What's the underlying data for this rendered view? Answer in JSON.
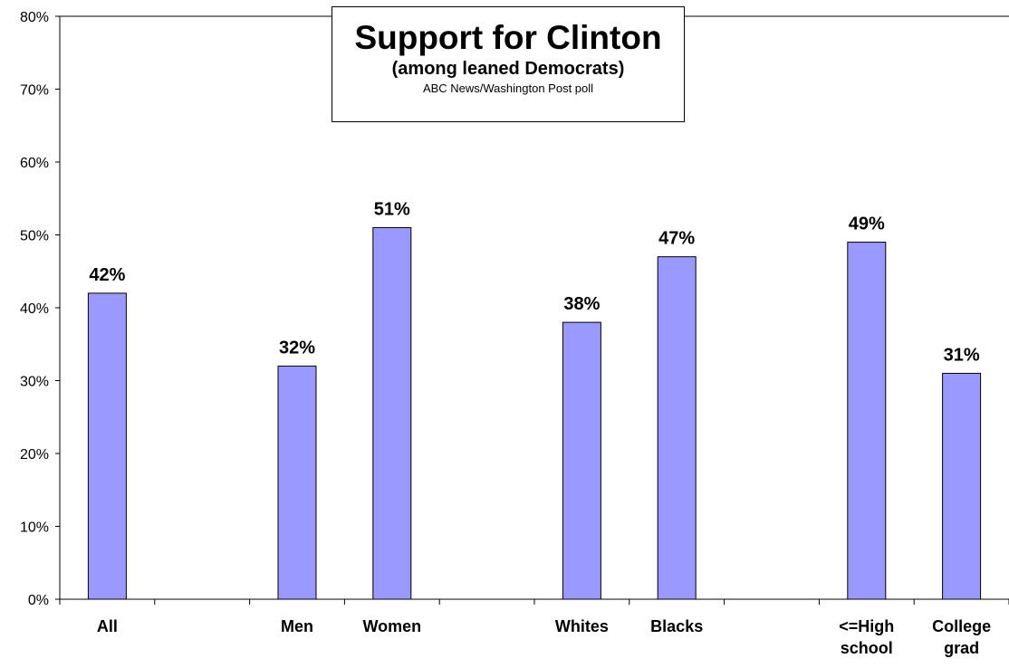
{
  "chart_data": {
    "type": "bar",
    "title": "Support for Clinton",
    "subtitle": "(among leaned Democrats)",
    "source": "ABC News/Washington Post poll",
    "xlabel": "",
    "ylabel": "",
    "ylim": [
      0,
      80
    ],
    "yticks": [
      "0%",
      "10%",
      "20%",
      "30%",
      "40%",
      "50%",
      "60%",
      "70%",
      "80%"
    ],
    "grid": false,
    "categories": [
      {
        "label": [
          "All"
        ],
        "value": 42,
        "data_label": "42%"
      },
      {
        "label": [
          ""
        ],
        "value": null,
        "data_label": ""
      },
      {
        "label": [
          "Men"
        ],
        "value": 32,
        "data_label": "32%"
      },
      {
        "label": [
          "Women"
        ],
        "value": 51,
        "data_label": "51%"
      },
      {
        "label": [
          ""
        ],
        "value": null,
        "data_label": ""
      },
      {
        "label": [
          "Whites"
        ],
        "value": 38,
        "data_label": "38%"
      },
      {
        "label": [
          "Blacks"
        ],
        "value": 47,
        "data_label": "47%"
      },
      {
        "label": [
          ""
        ],
        "value": null,
        "data_label": ""
      },
      {
        "label": [
          "<=High",
          "school"
        ],
        "value": 49,
        "data_label": "49%"
      },
      {
        "label": [
          "College",
          "grad"
        ],
        "value": 31,
        "data_label": "31%"
      }
    ],
    "bar_color": "#9999FF",
    "bar_edge_color": "#000000"
  }
}
